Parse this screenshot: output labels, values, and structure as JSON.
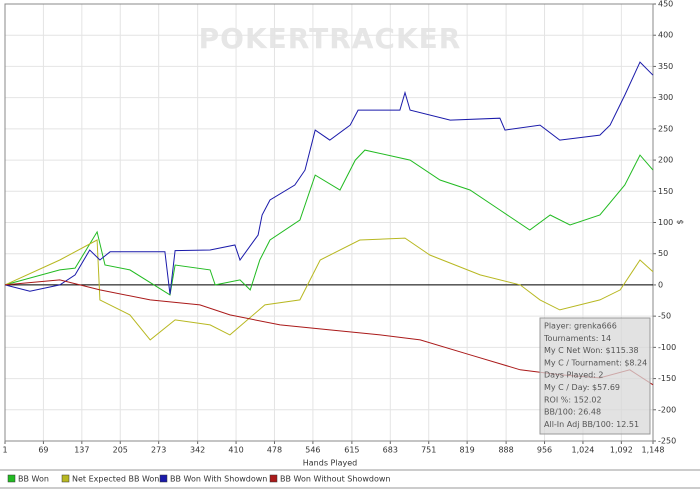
{
  "chart_data": {
    "type": "line",
    "watermark": "POKERTRACKER",
    "x_label": "Hands Played",
    "y_label": "$",
    "xlim": [
      1,
      1148
    ],
    "ylim": [
      -250,
      450
    ],
    "xticks": [
      1,
      69,
      137,
      205,
      273,
      342,
      410,
      478,
      546,
      615,
      683,
      751,
      819,
      888,
      956,
      {
        "value": 1024,
        "label": "1,024"
      },
      {
        "value": 1092,
        "label": "1,092"
      },
      {
        "value": 1148,
        "label": "1,148"
      }
    ],
    "yticks": [
      -250,
      -200,
      -150,
      -100,
      -50,
      0,
      50,
      100,
      150,
      200,
      250,
      300,
      350,
      400,
      450
    ],
    "series": [
      {
        "name": "BB Won",
        "color": "#22bb22",
        "x": [
          1,
          98,
          125,
          164,
          178,
          222,
          293,
          302,
          364,
          373,
          417,
          435,
          452,
          470,
          523,
          550,
          594,
          621,
          638,
          718,
          771,
          824,
          877,
          930,
          966,
          1001,
          1054,
          1098,
          1125,
          1148
        ],
        "values": [
          0,
          24,
          27,
          85,
          32,
          24,
          -16,
          32,
          24,
          0,
          8,
          -8,
          40,
          72,
          104,
          176,
          152,
          200,
          216,
          200,
          168,
          152,
          120,
          88,
          112,
          96,
          112,
          160,
          208,
          184
        ]
      },
      {
        "name": "Net Expected BB Won",
        "color": "#b8b822",
        "x": [
          1,
          98,
          164,
          169,
          222,
          258,
          302,
          364,
          399,
          461,
          523,
          559,
          629,
          709,
          753,
          842,
          913,
          948,
          983,
          1054,
          1090,
          1125,
          1148
        ],
        "values": [
          0,
          40,
          72,
          -24,
          -48,
          -88,
          -56,
          -64,
          -80,
          -32,
          -24,
          40,
          72,
          75,
          48,
          16,
          0,
          -24,
          -40,
          -24,
          -8,
          40,
          21
        ]
      },
      {
        "name": "BB Won With Showdown",
        "color": "#1a1aaa",
        "x": [
          1,
          45,
          98,
          125,
          151,
          169,
          187,
          284,
          293,
          302,
          364,
          408,
          417,
          449,
          456,
          470,
          514,
          532,
          550,
          576,
          612,
          626,
          700,
          709,
          718,
          789,
          877,
          886,
          948,
          983,
          1054,
          1072,
          1098,
          1125,
          1148
        ],
        "values": [
          0,
          -10,
          0,
          16,
          56,
          40,
          53,
          53,
          -15,
          55,
          56,
          64,
          40,
          80,
          112,
          136,
          160,
          184,
          248,
          232,
          256,
          280,
          280,
          308,
          280,
          264,
          267,
          248,
          256,
          232,
          240,
          256,
          304,
          357,
          336
        ]
      },
      {
        "name": "BB Won Without Showdown",
        "color": "#aa1a1a",
        "x": [
          1,
          98,
          169,
          258,
          346,
          399,
          488,
          576,
          665,
          736,
          824,
          913,
          983,
          1054,
          1107,
          1148
        ],
        "values": [
          0,
          8,
          -8,
          -24,
          -32,
          -48,
          -64,
          -72,
          -80,
          -88,
          -112,
          -136,
          -144,
          -149,
          -136,
          -160
        ]
      }
    ],
    "stats": [
      "Player: grenka666",
      "Tournaments: 14",
      "My C Net Won: $115.38",
      "My C / Tournament: $8.24",
      "Days Played: 2",
      "My C / Day: $57.69",
      "ROI %: 152.02",
      "BB/100: 26.48",
      "All-In Adj BB/100: 12.51"
    ]
  }
}
